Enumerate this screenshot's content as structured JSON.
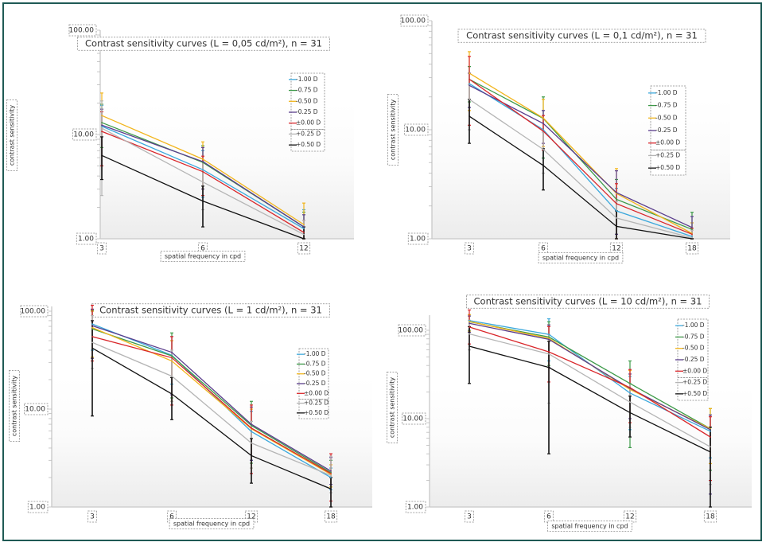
{
  "chart_data": [
    {
      "type": "line",
      "title": "Contrast sensitivity curves (L = 0,05 cd/m²), n = 31",
      "xlabel": "spatial frequency in cpd",
      "ylabel": "contrast sensitivity",
      "yscale": "log",
      "ylim": [
        1,
        100
      ],
      "yticks": [
        "100.00",
        "10.00",
        "1.00"
      ],
      "categories": [
        "3",
        "6",
        "12"
      ],
      "legend_position": "right",
      "series": [
        {
          "name": "-1.00 D",
          "color": "#3ba8dc",
          "values": [
            12.0,
            4.6,
            1.25
          ],
          "err_hi": [
            19.0,
            7.0,
            1.9
          ],
          "err_lo": [
            5.0,
            2.5,
            1.0
          ]
        },
        {
          "name": "-0.75 D",
          "color": "#3c9a48",
          "values": [
            13.0,
            5.4,
            1.3
          ],
          "err_hi": [
            19.5,
            7.8,
            1.8
          ],
          "err_lo": [
            7.5,
            3.0,
            1.0
          ]
        },
        {
          "name": "-0.50 D",
          "color": "#f2b51c",
          "values": [
            15.2,
            5.8,
            1.37
          ],
          "err_hi": [
            25.0,
            8.5,
            2.2
          ],
          "err_lo": [
            5.0,
            3.0,
            1.0
          ]
        },
        {
          "name": "-0.25 D",
          "color": "#5a3d8c",
          "values": [
            12.3,
            5.5,
            1.3
          ],
          "err_hi": [
            17.5,
            7.5,
            1.7
          ],
          "err_lo": [
            5.0,
            3.0,
            1.0
          ]
        },
        {
          "name": "±0.00 D",
          "color": "#d9262a",
          "values": [
            10.7,
            4.4,
            1.15
          ],
          "err_hi": [
            16.5,
            6.2,
            1.5
          ],
          "err_lo": [
            5.0,
            2.6,
            1.0
          ]
        },
        {
          "name": "+0.25 D",
          "color": "#b5b5b5",
          "values": [
            11.5,
            3.5,
            1.1
          ],
          "err_hi": [
            21.0,
            5.5,
            1.5
          ],
          "err_lo": [
            2.6,
            1.9,
            1.0
          ]
        },
        {
          "name": "+0.50 D",
          "color": "#111111",
          "values": [
            6.3,
            2.3,
            1.0
          ],
          "err_hi": [
            9.5,
            3.2,
            1.3
          ],
          "err_lo": [
            3.7,
            1.3,
            1.0
          ]
        }
      ]
    },
    {
      "type": "line",
      "title": "Contrast sensitivity curves (L = 0,1 cd/m²), n = 31",
      "xlabel": "spatial frequency in cpd",
      "ylabel": "contrast sensitivity",
      "yscale": "log",
      "ylim": [
        1,
        100
      ],
      "yticks": [
        "100.00",
        "10.00",
        "1.00"
      ],
      "categories": [
        "3",
        "6",
        "12",
        "18"
      ],
      "legend_position": "right",
      "series": [
        {
          "name": "-1.00 D",
          "color": "#3ba8dc",
          "values": [
            26.5,
            10.0,
            1.8,
            1.05
          ],
          "err_hi": [
            38.0,
            15.0,
            2.9,
            1.4
          ],
          "err_lo": [
            16.0,
            5.5,
            1.0,
            1.0
          ]
        },
        {
          "name": "-0.75 D",
          "color": "#3c9a48",
          "values": [
            29.0,
            12.7,
            2.3,
            1.22
          ],
          "err_hi": [
            38.0,
            20.0,
            3.5,
            1.75
          ],
          "err_lo": [
            18.0,
            5.5,
            1.1,
            1.0
          ]
        },
        {
          "name": "-0.50 D",
          "color": "#f2b51c",
          "values": [
            33.0,
            12.8,
            2.6,
            1.12
          ],
          "err_hi": [
            52.0,
            19.0,
            4.4,
            1.4
          ],
          "err_lo": [
            15.0,
            7.0,
            1.0,
            1.0
          ]
        },
        {
          "name": "-0.25 D",
          "color": "#5a3d8c",
          "values": [
            25.5,
            11.4,
            2.65,
            1.27
          ],
          "err_hi": [
            33.0,
            15.0,
            4.2,
            1.6
          ],
          "err_lo": [
            16.0,
            7.5,
            1.1,
            1.0
          ]
        },
        {
          "name": "±0.00 D",
          "color": "#d9262a",
          "values": [
            29.0,
            9.7,
            2.1,
            1.1
          ],
          "err_hi": [
            47.0,
            13.5,
            3.2,
            1.25
          ],
          "err_lo": [
            11.0,
            6.5,
            1.0,
            1.0
          ]
        },
        {
          "name": "+0.25 D",
          "color": "#b5b5b5",
          "values": [
            19.0,
            6.6,
            1.55,
            1.02
          ],
          "err_hi": [
            26.0,
            9.5,
            2.2,
            1.2
          ],
          "err_lo": [
            10.0,
            4.0,
            1.0,
            1.0
          ]
        },
        {
          "name": "+0.50 D",
          "color": "#111111",
          "values": [
            13.3,
            4.7,
            1.3,
            1.0
          ],
          "err_hi": [
            19.0,
            6.7,
            1.8,
            1.0
          ],
          "err_lo": [
            7.5,
            2.8,
            1.0,
            1.0
          ]
        }
      ]
    },
    {
      "type": "line",
      "title": "Contrast sensitivity curves (L = 1 cd/m²), n = 31",
      "xlabel": "spatial frequency in cpd",
      "ylabel": "contrast sensitivity",
      "yscale": "log",
      "ylim": [
        1,
        100
      ],
      "yticks": [
        "100.00",
        "10.00",
        "1.00"
      ],
      "categories": [
        "3",
        "6",
        "12",
        "18"
      ],
      "legend_position": "right",
      "series": [
        {
          "name": "-1.00 D",
          "color": "#3ba8dc",
          "values": [
            74,
            35.5,
            5.9,
            2.0
          ],
          "err_hi": [
            100,
            50,
            9.5,
            2.5
          ],
          "err_lo": [
            40,
            18,
            3.0,
            1.5
          ]
        },
        {
          "name": "-0.75 D",
          "color": "#3c9a48",
          "values": [
            66,
            35,
            6.8,
            2.25
          ],
          "err_hi": [
            102,
            60,
            12.0,
            3.0
          ],
          "err_lo": [
            34,
            13,
            2.8,
            1.6
          ]
        },
        {
          "name": "-0.50 D",
          "color": "#f2b51c",
          "values": [
            68,
            31,
            6.3,
            2.15
          ],
          "err_hi": [
            100,
            50,
            10.0,
            2.7
          ],
          "err_lo": [
            34,
            12,
            2.5,
            1.6
          ]
        },
        {
          "name": "-0.25 D",
          "color": "#5a3d8c",
          "values": [
            71,
            38,
            7.0,
            2.33
          ],
          "err_hi": [
            105,
            55,
            10.5,
            3.2
          ],
          "err_lo": [
            33,
            14,
            3.0,
            1.7
          ]
        },
        {
          "name": "±0.00 D",
          "color": "#d9262a",
          "values": [
            55,
            33.5,
            6.4,
            2.2
          ],
          "err_hi": [
            115,
            55,
            11.0,
            3.5
          ],
          "err_lo": [
            31,
            11,
            2.2,
            1.15
          ]
        },
        {
          "name": "+0.25 D",
          "color": "#b5b5b5",
          "values": [
            48,
            21.7,
            4.5,
            2.1
          ],
          "err_hi": [
            90,
            40,
            7.5,
            3.3
          ],
          "err_lo": [
            26,
            12,
            2.5,
            1.4
          ]
        },
        {
          "name": "+0.50 D",
          "color": "#111111",
          "values": [
            42,
            14.3,
            3.35,
            1.53
          ],
          "err_hi": [
            80,
            21,
            5.0,
            2.0
          ],
          "err_lo": [
            8.5,
            7.8,
            1.75,
            1.0
          ]
        }
      ]
    },
    {
      "type": "line",
      "title": "Contrast sensitivity curves (L = 10 cd/m²), n = 31",
      "xlabel": "spatial frequency in cpd",
      "ylabel": "contrast sensitivity",
      "yscale": "log",
      "ylim": [
        1,
        150
      ],
      "yticks": [
        "100.00",
        "10.00",
        "1.00"
      ],
      "categories": [
        "3",
        "6",
        "12",
        "18"
      ],
      "legend_position": "top-right",
      "series": [
        {
          "name": "-1.00 D",
          "color": "#3ba8dc",
          "values": [
            129,
            90,
            19.5,
            7.2
          ],
          "err_hi": [
            150,
            135,
            30,
            11.0
          ],
          "err_lo": [
            100,
            45,
            7.5,
            3.6
          ]
        },
        {
          "name": "-0.75 D",
          "color": "#3c9a48",
          "values": [
            125,
            84,
            25,
            7.7
          ],
          "err_hi": [
            150,
            125,
            45,
            13.0
          ],
          "err_lo": [
            95,
            40,
            4.7,
            2.6
          ]
        },
        {
          "name": "-0.50 D",
          "color": "#f2b51c",
          "values": [
            126,
            81,
            21.4,
            7.7
          ],
          "err_hi": [
            150,
            115,
            35,
            13.0
          ],
          "err_lo": [
            98,
            38,
            9.0,
            3.1
          ]
        },
        {
          "name": "-0.25 D",
          "color": "#5a3d8c",
          "values": [
            120,
            79,
            22,
            7.5
          ],
          "err_hi": [
            145,
            115,
            32,
            11.0
          ],
          "err_lo": [
            95,
            38,
            10.0,
            1.4
          ]
        },
        {
          "name": "±0.00 D",
          "color": "#d9262a",
          "values": [
            109,
            57,
            22.5,
            6.2
          ],
          "err_hi": [
            170,
            110,
            36,
            10.5
          ],
          "err_lo": [
            70,
            26,
            9.0,
            2.0
          ]
        },
        {
          "name": "+0.25 D",
          "color": "#b5b5b5",
          "values": [
            91,
            54,
            15.4,
            4.8
          ],
          "err_hi": [
            130,
            90,
            25,
            8.0
          ],
          "err_lo": [
            60,
            15,
            8.0,
            1.8
          ]
        },
        {
          "name": "+0.50 D",
          "color": "#111111",
          "values": [
            66,
            38,
            11.7,
            4.2
          ],
          "err_hi": [
            110,
            75,
            18,
            8.0
          ],
          "err_lo": [
            25,
            4.0,
            6.2,
            1.0
          ]
        }
      ]
    }
  ]
}
